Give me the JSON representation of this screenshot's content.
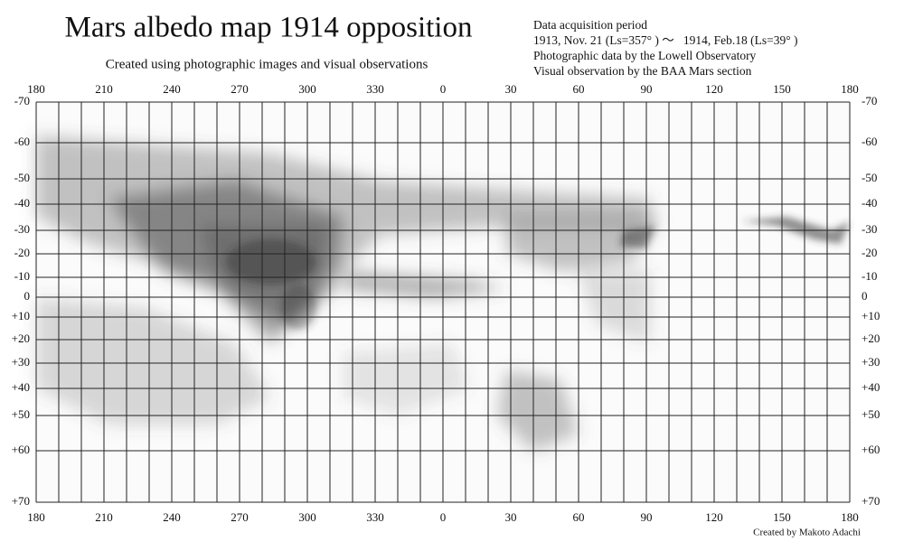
{
  "title": "Mars albedo map 1914 opposition",
  "subtitle": "Created using photographic images and visual observations",
  "notes": [
    "Data acquisition period",
    "1913, Nov. 21 (Ls=357° ) ～   1914, Feb.18 (Ls=39° )",
    "Photographic data by the Lowell Observatory",
    "Visual observation by the BAA Mars section"
  ],
  "longitude_labels": [
    "180",
    "210",
    "240",
    "270",
    "300",
    "330",
    "0",
    "30",
    "60",
    "90",
    "120",
    "150",
    "180"
  ],
  "latitude_labels": [
    "-70",
    "-60",
    "-50",
    "-40",
    "-30",
    "-20",
    "-10",
    "0",
    "+10",
    "+20",
    "+30",
    "+40",
    "+50",
    "+60",
    "+70"
  ],
  "credit": "Created by Makoto Adachi"
}
